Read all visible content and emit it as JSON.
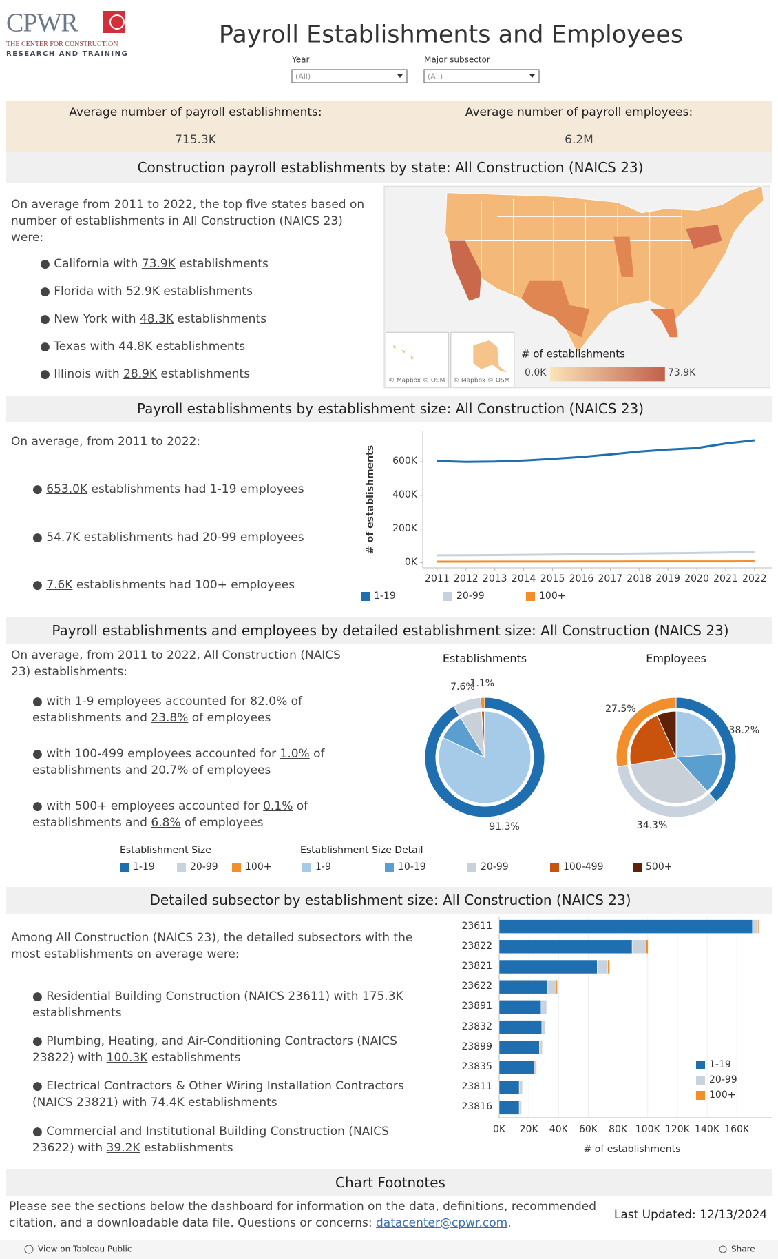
{
  "header": {
    "logo": {
      "name": "CPWR",
      "line1": "THE CENTER FOR CONSTRUCTION",
      "line2": "RESEARCH AND TRAINING"
    },
    "title": "Payroll Establishments and Employees",
    "filters": [
      {
        "label": "Year",
        "value": "(All)"
      },
      {
        "label": "Major subsector",
        "value": "(All)"
      }
    ]
  },
  "kpis": [
    {
      "label": "Average number of payroll establishments:",
      "value": "715.3K"
    },
    {
      "label": "Average number of payroll employees:",
      "value": "6.2M"
    }
  ],
  "sections": [
    {
      "title": "Construction payroll establishments by state: All Construction (NAICS 23)",
      "intro": "On average from 2011 to 2022, the top five states based on number of establishments in All Construction (NAICS 23) were:",
      "bullets": [
        [
          {
            "text": "California with "
          },
          {
            "link": "73.9K"
          },
          {
            "text": " establishments"
          }
        ],
        [
          {
            "text": "Florida with "
          },
          {
            "link": "52.9K"
          },
          {
            "text": " establishments"
          }
        ],
        [
          {
            "text": "New York with "
          },
          {
            "link": "48.3K"
          },
          {
            "text": " establishments"
          }
        ],
        [
          {
            "text": "Texas with "
          },
          {
            "link": "44.8K"
          },
          {
            "text": " establishments"
          }
        ],
        [
          {
            "text": "Illinois with "
          },
          {
            "link": "28.9K"
          },
          {
            "text": " establishments"
          }
        ]
      ],
      "map": {
        "legend_title": "# of establishments",
        "legend_min": "0.0K",
        "legend_max": "73.9K",
        "attribution": [
          "© Mapbox © OSM",
          "© Mapbox © OSM"
        ]
      }
    },
    {
      "title": "Payroll establishments by establishment size: All Construction (NAICS 23)",
      "intro": "On average, from 2011 to 2022:",
      "bullets": [
        [
          {
            "link": "653.0K"
          },
          {
            "text": " establishments had 1-19 employees"
          }
        ],
        [
          {
            "link": "54.7K"
          },
          {
            "text": " establishments had 20-99 employees"
          }
        ],
        [
          {
            "link": "7.6K"
          },
          {
            "text": " establishments had 100+ employees"
          }
        ]
      ]
    },
    {
      "title": "Payroll establishments and employees by detailed establishment size: All Construction (NAICS 23)",
      "intro": "On average, from 2011 to 2022, All Construction (NAICS 23) establishments:",
      "bullets": [
        [
          {
            "text": "with 1-9 employees accounted for "
          },
          {
            "link": "82.0%"
          },
          {
            "text": " of establishments and "
          },
          {
            "link": "23.8%"
          },
          {
            "text": " of employees"
          }
        ],
        [
          {
            "text": "with 100-499 employees accounted for "
          },
          {
            "link": "1.0%"
          },
          {
            "text": " of establishments and "
          },
          {
            "link": "20.7%"
          },
          {
            "text": " of employees"
          }
        ],
        [
          {
            "text": "with 500+ employees accounted for "
          },
          {
            "link": "0.1%"
          },
          {
            "text": " of establishments and "
          },
          {
            "link": "6.8%"
          },
          {
            "text": " of employees"
          }
        ]
      ]
    },
    {
      "title": "Detailed subsector by establishment size: All Construction (NAICS 23)",
      "intro": "Among All Construction (NAICS 23), the detailed subsectors with the most establishments on average were:",
      "bullets": [
        [
          {
            "text": "Residential Building Construction (NAICS 23611) with "
          },
          {
            "link": "175.3K"
          },
          {
            "text": " establishments"
          }
        ],
        [
          {
            "text": "Plumbing, Heating, and Air-Conditioning Contractors (NAICS 23822) with "
          },
          {
            "link": "100.3K"
          },
          {
            "text": " establishments"
          }
        ],
        [
          {
            "text": "Electrical Contractors & Other Wiring Installation Contractors (NAICS 23821) with "
          },
          {
            "link": "74.4K"
          },
          {
            "text": " establishments"
          }
        ],
        [
          {
            "text": "Commercial and Institutional Building Construction (NAICS 23622) with "
          },
          {
            "link": "39.2K"
          },
          {
            "text": " establishments"
          }
        ]
      ]
    }
  ],
  "pie_legends": [
    {
      "title": "Establishment Size",
      "categories": [
        "1-19",
        "20-99",
        "100+"
      ],
      "colors": [
        "#1f6fb0",
        "#c9d3de",
        "#f28e2b"
      ]
    },
    {
      "title": "Establishment Size Detail",
      "categories": [
        "1-9",
        "10-19",
        "20-99",
        "100-499",
        "500+"
      ],
      "colors": [
        "#a6cbe8",
        "#5b9fd0",
        "#c9d0d8",
        "#c9520c",
        "#5e2208"
      ]
    }
  ],
  "chart_data": [
    {
      "type": "line",
      "x": [
        2011,
        2012,
        2013,
        2014,
        2015,
        2016,
        2017,
        2018,
        2019,
        2020,
        2021,
        2022
      ],
      "xlim": [
        2010.5,
        2022.6
      ],
      "xticks": [
        2011,
        2012,
        2013,
        2014,
        2015,
        2016,
        2017,
        2018,
        2019,
        2020,
        2021,
        2022
      ],
      "series": [
        {
          "name": "1-19",
          "color": "#1f6fb0",
          "values": [
            604000,
            599000,
            601000,
            607000,
            617000,
            628000,
            643000,
            660000,
            672000,
            681000,
            708000,
            727000
          ]
        },
        {
          "name": "20-99",
          "color": "#c5d2de",
          "values": [
            44000,
            44500,
            45500,
            47000,
            49000,
            51000,
            53000,
            55000,
            57000,
            58500,
            61000,
            66000
          ]
        },
        {
          "name": "100+",
          "color": "#f28e2b",
          "values": [
            7000,
            7000,
            7200,
            7300,
            7500,
            7700,
            7900,
            8100,
            8200,
            8300,
            8500,
            8900
          ]
        }
      ],
      "ylim": [
        -30000,
        780000
      ],
      "yticks": [
        {
          "value": 0,
          "label": "0K"
        },
        {
          "value": 200000,
          "label": "200K"
        },
        {
          "value": 400000,
          "label": "400K"
        },
        {
          "value": 600000,
          "label": "600K"
        }
      ],
      "y_label": "# of establishments",
      "legend": "bottom"
    },
    {
      "type": "pie",
      "title": "Establishments",
      "rings": [
        {
          "values": [
            91.3,
            7.6,
            1.1
          ],
          "value_labels": [
            "91.3%",
            "7.6%",
            "1.1%"
          ]
        },
        {
          "values": [
            82.0,
            9.3,
            7.6,
            1.0,
            0.1
          ]
        }
      ]
    },
    {
      "type": "pie",
      "title": "Employees",
      "rings": [
        {
          "values": [
            38.2,
            34.3,
            27.5
          ],
          "value_labels": [
            "38.2%",
            "34.3%",
            "27.5%"
          ]
        },
        {
          "values": [
            23.8,
            14.4,
            34.3,
            20.7,
            6.8
          ]
        }
      ]
    },
    {
      "type": "bar",
      "orientation": "horizontal",
      "stacked": true,
      "categories": [
        "23611",
        "23822",
        "23821",
        "23622",
        "23891",
        "23832",
        "23899",
        "23835",
        "23811",
        "23816"
      ],
      "series": [
        {
          "name": "1-19",
          "color": "#1f6fb0",
          "values": [
            170500,
            89500,
            66000,
            32500,
            28200,
            28700,
            27000,
            23300,
            13500,
            13500
          ]
        },
        {
          "name": "20-99",
          "color": "#c9d3de",
          "values": [
            3800,
            9500,
            7000,
            5900,
            3800,
            2200,
            2000,
            1600,
            2200,
            1600
          ]
        },
        {
          "name": "100+",
          "color": "#f28e2b",
          "values": [
            1000,
            1300,
            1400,
            800,
            400,
            300,
            500,
            300,
            200,
            200
          ]
        }
      ],
      "xlim": [
        0,
        184000
      ],
      "xticks": [
        {
          "value": 0,
          "label": "0K"
        },
        {
          "value": 20000,
          "label": "20K"
        },
        {
          "value": 40000,
          "label": "40K"
        },
        {
          "value": 60000,
          "label": "60K"
        },
        {
          "value": 80000,
          "label": "80K"
        },
        {
          "value": 100000,
          "label": "100K"
        },
        {
          "value": 120000,
          "label": "120K"
        },
        {
          "value": 140000,
          "label": "140K"
        },
        {
          "value": 160000,
          "label": "160K"
        }
      ],
      "x_label": "# of establishments",
      "legend": "lower right"
    }
  ],
  "footnotes": {
    "title": "Chart Footnotes",
    "text": [
      {
        "text": "Please see the sections below the dashboard for information on the data, definitions, recommended citation, and a downloadable data file. Questions or concerns: "
      },
      {
        "link": "datacenter@cpwr.com"
      },
      {
        "text": "."
      }
    ],
    "updated": "Last Updated: 12/13/2024"
  },
  "toolbar": {
    "view": "View on Tableau Public",
    "share": "Share"
  }
}
